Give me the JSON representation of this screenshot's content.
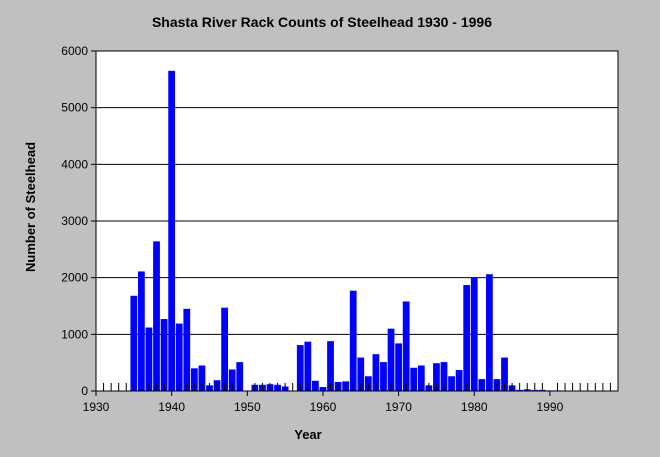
{
  "chart_data": {
    "type": "bar",
    "title": "Shasta River Rack Counts of Steelhead 1930 - 1996",
    "xlabel": "Year",
    "ylabel": "Number of Steelhead",
    "xlim": [
      1930,
      1999
    ],
    "ylim": [
      0,
      6000
    ],
    "x_ticks": [
      1930,
      1940,
      1950,
      1960,
      1970,
      1980,
      1990
    ],
    "y_ticks": [
      0,
      1000,
      2000,
      3000,
      4000,
      5000,
      6000
    ],
    "grid": "horizontal",
    "bar_color": "#0000ff",
    "plot_background": "#ffffff",
    "series": [
      {
        "x": [
          1935,
          1936,
          1937,
          1938,
          1939,
          1940,
          1941,
          1942,
          1943,
          1944,
          1945,
          1946,
          1947,
          1948,
          1949,
          1951,
          1952,
          1953,
          1954,
          1955,
          1957,
          1958,
          1959,
          1960,
          1961,
          1962,
          1963,
          1964,
          1965,
          1966,
          1967,
          1968,
          1969,
          1970,
          1971,
          1972,
          1973,
          1974,
          1975,
          1976,
          1977,
          1978,
          1979,
          1980,
          1981,
          1982,
          1983,
          1984,
          1985,
          1986,
          1987,
          1988,
          1989,
          1990,
          1991,
          1992,
          1993,
          1994,
          1995,
          1996
        ],
        "values": [
          1680,
          2110,
          1120,
          2640,
          1270,
          5650,
          1190,
          1450,
          400,
          450,
          100,
          190,
          1470,
          380,
          510,
          110,
          110,
          120,
          110,
          80,
          810,
          870,
          180,
          70,
          880,
          160,
          170,
          1770,
          590,
          260,
          650,
          510,
          1100,
          840,
          1580,
          410,
          450,
          100,
          490,
          510,
          260,
          370,
          1870,
          2000,
          210,
          2060,
          210,
          590,
          100,
          20,
          30,
          20,
          20,
          10,
          10,
          5,
          5,
          5,
          5,
          5
        ]
      }
    ]
  }
}
